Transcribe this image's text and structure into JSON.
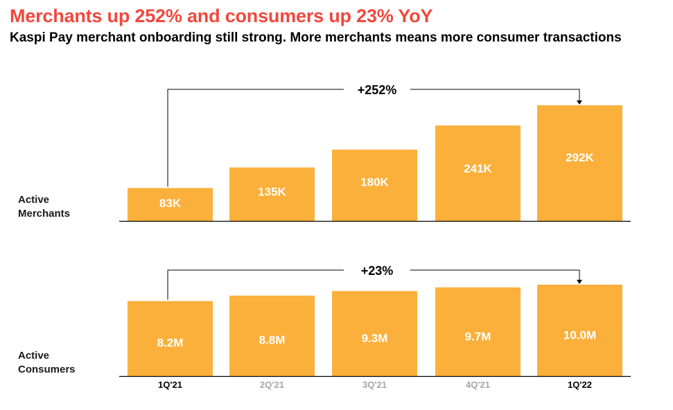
{
  "header": {
    "title": "Merchants up 252% and consumers up 23% YoY",
    "subtitle": "Kaspi Pay merchant onboarding still strong. More merchants means more consumer transactions"
  },
  "colors": {
    "title": "#f0483e",
    "bar": "#fbb03b",
    "label_highlight": "#000000",
    "label_muted": "#a6a6a6"
  },
  "chart_data": {
    "type": "bar",
    "categories": [
      "1Q'21",
      "2Q'21",
      "3Q'21",
      "4Q'21",
      "1Q'22"
    ],
    "category_label_emphasis": [
      true,
      false,
      false,
      false,
      true
    ],
    "panels": [
      {
        "label_line1": "Active",
        "label_line2": "Merchants",
        "values": [
          83,
          135,
          180,
          241,
          292
        ],
        "value_labels": [
          "83K",
          "135K",
          "180K",
          "241K",
          "292K"
        ],
        "unit": "K",
        "growth_label": "+252%",
        "ylim": [
          0,
          300
        ]
      },
      {
        "label_line1": "Active",
        "label_line2": "Consumers",
        "values": [
          8.2,
          8.8,
          9.3,
          9.7,
          10.0
        ],
        "value_labels": [
          "8.2M",
          "8.8M",
          "9.3M",
          "9.7M",
          "10.0M"
        ],
        "unit": "M",
        "growth_label": "+23%",
        "ylim": [
          0,
          12
        ]
      }
    ]
  }
}
